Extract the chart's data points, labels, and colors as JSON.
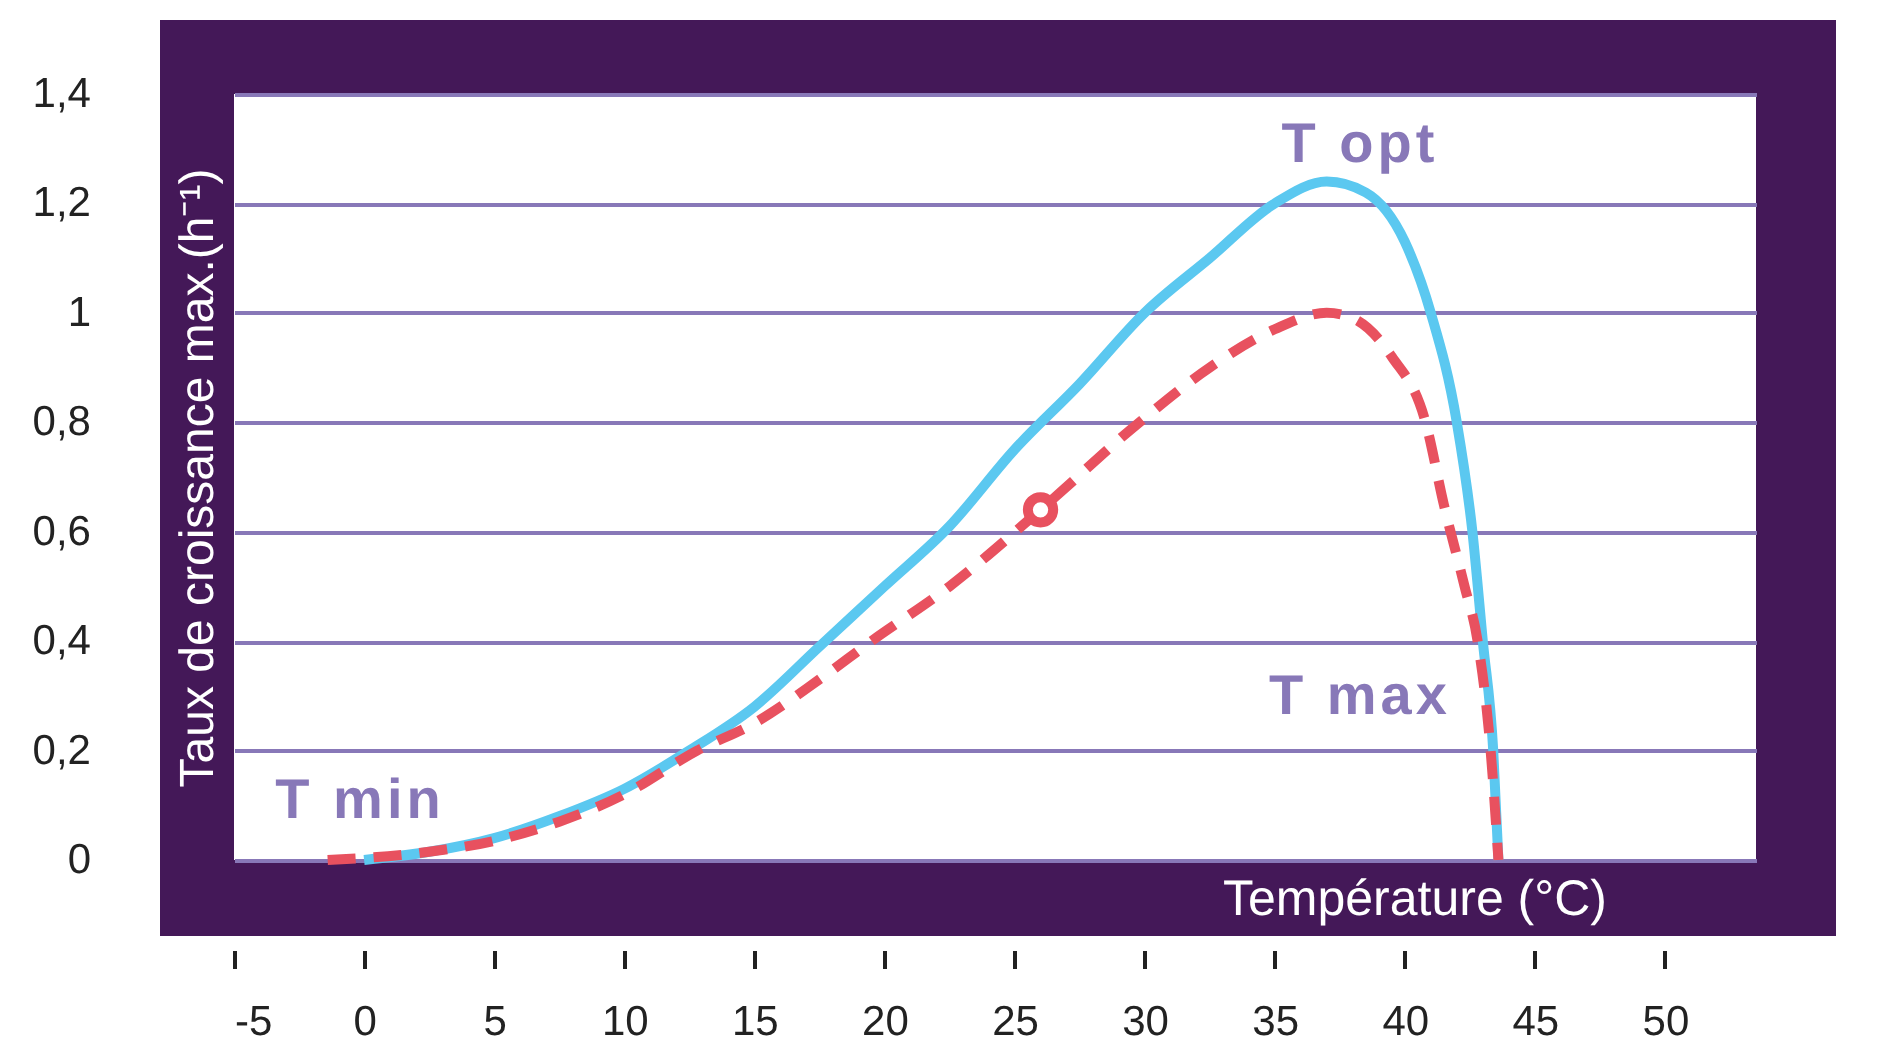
{
  "chart_data": {
    "type": "line",
    "xlabel": "Température (°C)",
    "ylabel": "Taux de croissance max.(h⁻¹)",
    "xlim": [
      -5,
      53.5
    ],
    "ylim": [
      0,
      1.4
    ],
    "xticks": [
      -5,
      0,
      5,
      10,
      15,
      20,
      25,
      30,
      35,
      40,
      45,
      50
    ],
    "yticks": [
      {
        "value": 0,
        "label": "0"
      },
      {
        "value": 0.2,
        "label": "0,2"
      },
      {
        "value": 0.4,
        "label": "0,4"
      },
      {
        "value": 0.6,
        "label": "0,6"
      },
      {
        "value": 0.8,
        "label": "0,8"
      },
      {
        "value": 1,
        "label": "1"
      },
      {
        "value": 1.2,
        "label": "1,2"
      },
      {
        "value": 1.4,
        "label": "1,4"
      }
    ],
    "grid": "y",
    "marker": "none",
    "series": [
      {
        "color": "#5bc8f0",
        "line_style": "solid",
        "x": [
          0,
          2.5,
          5,
          7.5,
          10,
          12.5,
          15,
          17.5,
          20,
          22.5,
          25,
          27.5,
          30,
          32.5,
          35,
          37,
          38.5,
          40,
          41,
          42,
          42.6,
          43,
          43.4,
          43.6
        ],
        "values": [
          0,
          0.015,
          0.04,
          0.08,
          0.13,
          0.2,
          0.28,
          0.39,
          0.5,
          0.61,
          0.75,
          0.87,
          1,
          1.1,
          1.2,
          1.24,
          1.22,
          1.13,
          1,
          0.8,
          0.6,
          0.4,
          0.2,
          0
        ]
      },
      {
        "color": "#e8515f",
        "line_style": "dashed",
        "x": [
          -1.4,
          2.5,
          5,
          7.5,
          10,
          12.8,
          15,
          17.5,
          19.5,
          22.5,
          26,
          29.8,
          32.5,
          35,
          37,
          38,
          39.5,
          40.8,
          41.5,
          42.3,
          42.8,
          43.3,
          43.6
        ],
        "values": [
          0,
          0.015,
          0.035,
          0.07,
          0.12,
          0.2,
          0.25,
          0.33,
          0.4,
          0.5,
          0.64,
          0.8,
          0.9,
          0.97,
          1,
          0.99,
          0.92,
          0.8,
          0.65,
          0.5,
          0.4,
          0.2,
          0
        ]
      },
      {
        "type": "scatter",
        "color": "#e8515f",
        "marker": "circle",
        "x": [
          26
        ],
        "values": [
          0.64
        ]
      }
    ],
    "annotations": [
      "T min",
      "T opt",
      "T max"
    ]
  }
}
